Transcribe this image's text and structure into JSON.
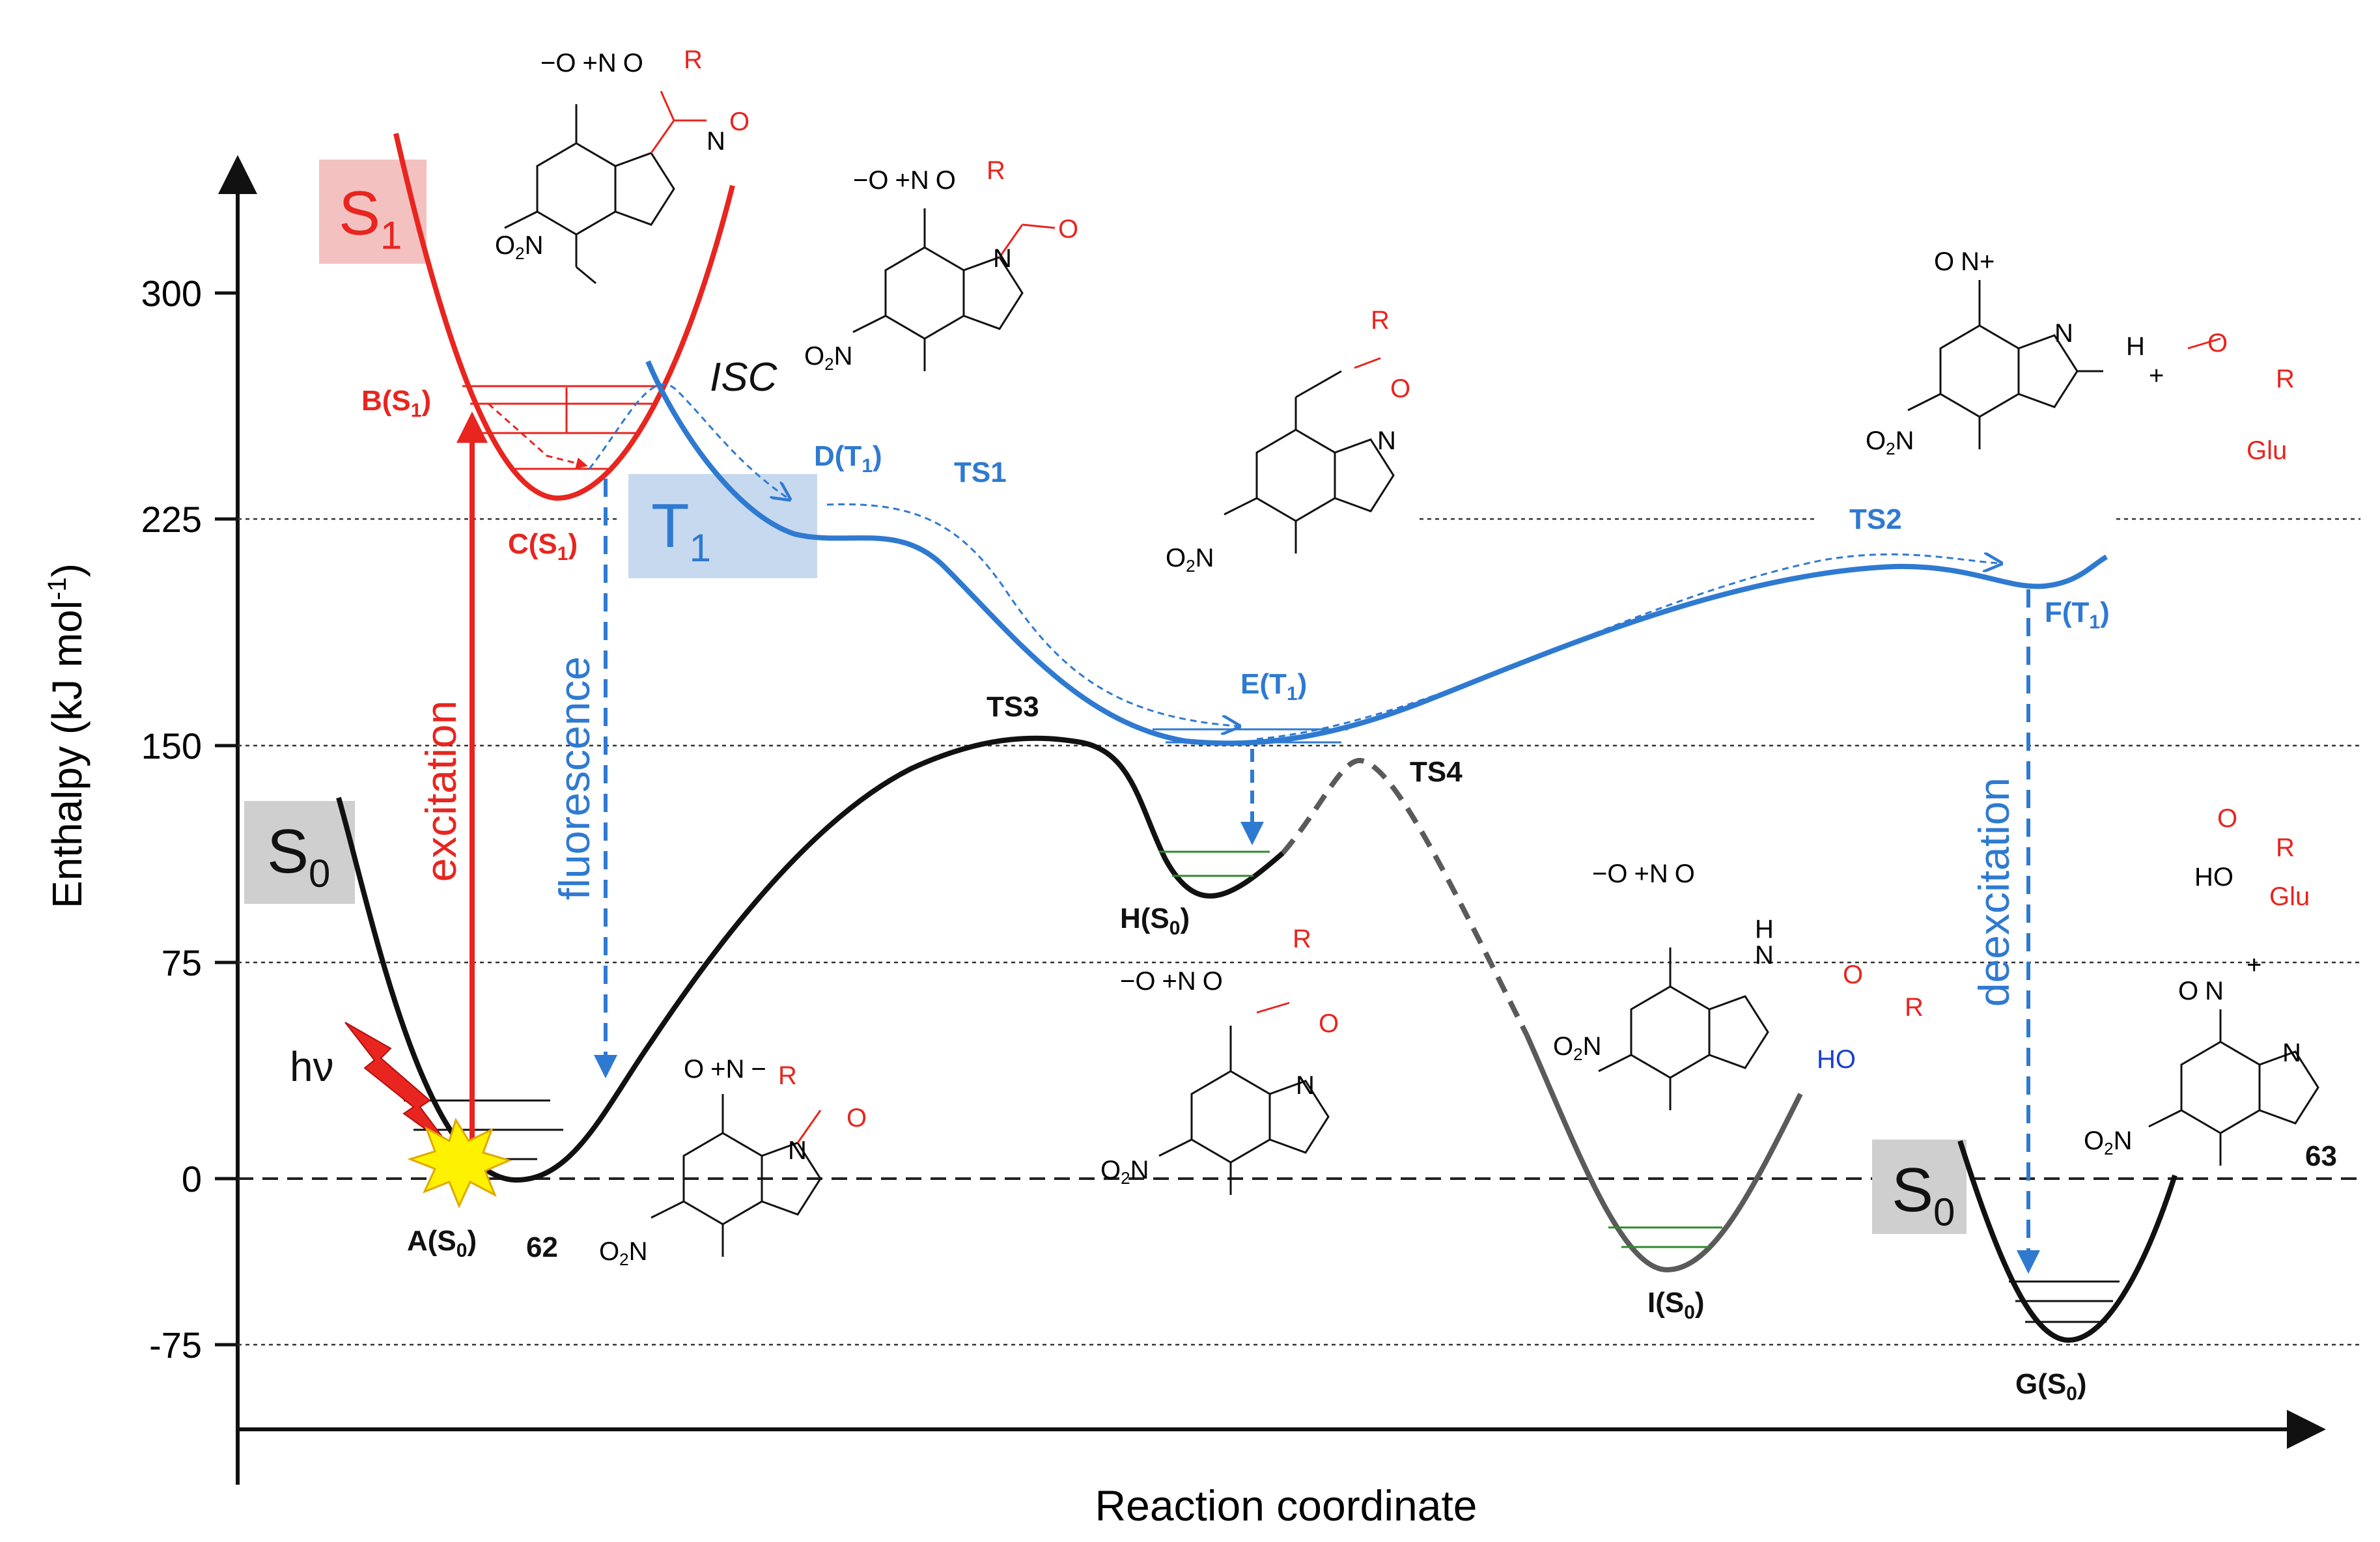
{
  "axes": {
    "y_label": "Enthalpy (kJ mol",
    "y_unit_sup": "-1",
    "y_unit_close": ")",
    "x_label": "Reaction coordinate",
    "ticks": [
      "300",
      "225",
      "150",
      "75",
      "0",
      "-75"
    ]
  },
  "surfaces": {
    "s1_tag": "S",
    "s1_sub": "1",
    "t1_tag": "T",
    "t1_sub": "1",
    "s0_tag": "S",
    "s0_sub": "0"
  },
  "processes": {
    "excitation": "excitation",
    "fluorescence": "fluorescence",
    "deexcitation": "deexcitation",
    "isc": "ISC",
    "hv": "hν"
  },
  "states": {
    "A": "A(S",
    "B": "B(S",
    "C": "C(S",
    "D": "D(T",
    "E": "E(T",
    "F": "F(T",
    "G": "G(S",
    "H": "H(S",
    "I": "I(S",
    "sub0": "0",
    "sub1": "1",
    "close": ")",
    "TS1": "TS1",
    "TS2": "TS2",
    "TS3": "TS3",
    "TS4": "TS4",
    "n62": "62",
    "n63": "63"
  },
  "chem": {
    "R": "R",
    "O": "O",
    "N": "N",
    "H": "H",
    "HO": "HO",
    "Glu": "Glu",
    "O2N": "O",
    "O2N_sub": "2",
    "O2N_N": "N",
    "plus": "+",
    "minus": "−"
  },
  "colors": {
    "s1_red": "#e8251f",
    "t1_blue": "#2f7ad1",
    "s0_black": "#111111",
    "gray": "#5a5a5a",
    "green": "#2f8a2f",
    "s1_box": "#f4c1c1",
    "t1_box": "#c7d9ef",
    "s0_box": "#cfcfcf"
  }
}
